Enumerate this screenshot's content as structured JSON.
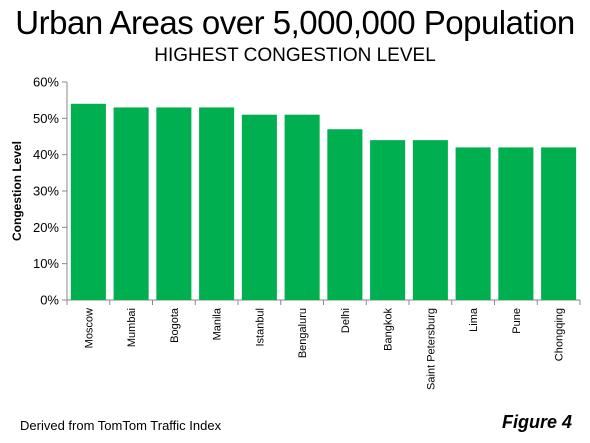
{
  "title": "Urban Areas over 5,000,000 Population",
  "subtitle": "HIGHEST CONGESTION LEVEL",
  "source": "Derived from TomTom Traffic Index",
  "figure_label": "Figure 4",
  "colors": {
    "bar": "#00b050",
    "axis": "#888888",
    "text": "#000000"
  },
  "chart_data": {
    "type": "bar",
    "title": "",
    "xlabel": "",
    "ylabel": "Congestion Level",
    "categories": [
      "Moscow",
      "Mumbai",
      "Bogota",
      "Manila",
      "Istanbul",
      "Bengaluru",
      "Delhi",
      "Bangkok",
      "Saint Petersburg",
      "Lima",
      "Pune",
      "Chongqing"
    ],
    "values": [
      54,
      53,
      53,
      53,
      51,
      51,
      47,
      44,
      44,
      42,
      42,
      42
    ],
    "ylim": [
      0,
      60
    ],
    "yticks": [
      0,
      10,
      20,
      30,
      40,
      50,
      60
    ],
    "ytick_labels": [
      "0%",
      "10%",
      "20%",
      "30%",
      "40%",
      "50%",
      "60%"
    ],
    "grid": false,
    "legend": false
  }
}
